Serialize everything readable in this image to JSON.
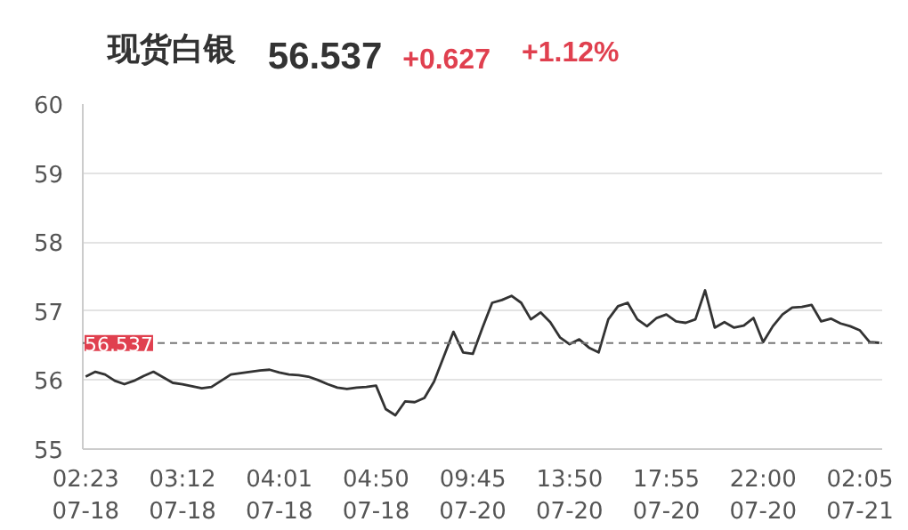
{
  "chart_data": {
    "type": "line",
    "title": "现货白银",
    "annotations": [
      "56.537",
      "+0.627",
      "+1.12%"
    ],
    "categories": [
      "02:23\n07-18",
      null,
      null,
      null,
      null,
      null,
      null,
      null,
      null,
      null,
      "03:12\n07-18",
      null,
      null,
      null,
      null,
      null,
      null,
      null,
      null,
      null,
      "04:01\n07-18",
      null,
      null,
      null,
      null,
      null,
      null,
      null,
      null,
      null,
      "04:50\n07-18",
      null,
      null,
      null,
      null,
      null,
      null,
      null,
      null,
      null,
      "09:45\n07-20",
      null,
      null,
      null,
      null,
      null,
      null,
      null,
      null,
      null,
      "13:50\n07-20",
      null,
      null,
      null,
      null,
      null,
      null,
      null,
      null,
      null,
      "17:55\n07-20",
      null,
      null,
      null,
      null,
      null,
      null,
      null,
      null,
      null,
      "22:00\n07-20",
      null,
      null,
      null,
      null,
      null,
      null,
      null,
      null,
      null,
      "02:05\n07-21",
      null,
      null
    ],
    "series": [
      {
        "color": "#333333",
        "values": [
          56.05,
          56.12,
          56.08,
          55.99,
          55.94,
          55.99,
          56.06,
          56.12,
          56.04,
          55.96,
          55.94,
          55.91,
          55.88,
          55.9,
          55.99,
          56.08,
          56.1,
          56.12,
          56.14,
          56.15,
          56.11,
          56.08,
          56.07,
          56.05,
          56.0,
          55.94,
          55.89,
          55.87,
          55.89,
          55.9,
          55.92,
          55.58,
          55.49,
          55.69,
          55.68,
          55.74,
          55.98,
          56.34,
          56.7,
          56.4,
          56.38,
          56.76,
          57.12,
          57.16,
          57.22,
          57.12,
          56.88,
          56.98,
          56.84,
          56.62,
          56.52,
          56.59,
          56.47,
          56.4,
          56.88,
          57.07,
          57.12,
          56.88,
          56.78,
          56.9,
          56.95,
          56.85,
          56.83,
          56.88,
          57.3,
          56.76,
          56.84,
          56.76,
          56.79,
          56.9,
          56.55,
          56.78,
          56.95,
          57.05,
          57.06,
          57.09,
          56.85,
          56.89,
          56.82,
          56.78,
          56.72,
          56.55,
          56.54
        ]
      }
    ],
    "ylim": [
      55,
      60
    ],
    "yticks": [
      55,
      56,
      57,
      58,
      59,
      60
    ],
    "grid": "y",
    "marker": "none",
    "line_style": "solid",
    "ref_lines": [
      {
        "axis": "y",
        "value": 56.537,
        "label": "56.537",
        "color": "#777777",
        "line_style": "dashed"
      }
    ]
  }
}
